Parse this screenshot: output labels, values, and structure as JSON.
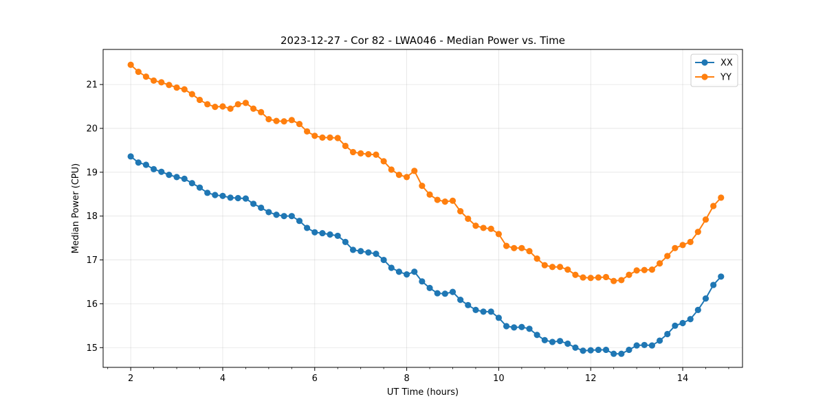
{
  "chart_data": {
    "type": "line",
    "title": "2023-12-27 - Cor 82 - LWA046 - Median Power vs. Time",
    "xlabel": "UT Time (hours)",
    "ylabel": "Median Power (CPU)",
    "xlim": [
      1.4,
      15.3
    ],
    "ylim": [
      14.55,
      21.8
    ],
    "xticks": [
      2,
      4,
      6,
      8,
      10,
      12,
      14
    ],
    "xtick_labels": [
      "2",
      "4",
      "6",
      "8",
      "10",
      "12",
      "14"
    ],
    "yticks": [
      15,
      16,
      17,
      18,
      19,
      20,
      21
    ],
    "ytick_labels": [
      "15",
      "16",
      "17",
      "18",
      "19",
      "20",
      "21"
    ],
    "grid": true,
    "legend_position": "top-right",
    "x": [
      2.0,
      2.167,
      2.333,
      2.5,
      2.667,
      2.833,
      3.0,
      3.167,
      3.333,
      3.5,
      3.667,
      3.833,
      4.0,
      4.167,
      4.333,
      4.5,
      4.667,
      4.833,
      5.0,
      5.167,
      5.333,
      5.5,
      5.667,
      5.833,
      6.0,
      6.167,
      6.333,
      6.5,
      6.667,
      6.833,
      7.0,
      7.167,
      7.333,
      7.5,
      7.667,
      7.833,
      8.0,
      8.167,
      8.333,
      8.5,
      8.667,
      8.833,
      9.0,
      9.167,
      9.333,
      9.5,
      9.667,
      9.833,
      10.0,
      10.167,
      10.333,
      10.5,
      10.667,
      10.833,
      11.0,
      11.167,
      11.333,
      11.5,
      11.667,
      11.833,
      12.0,
      12.167,
      12.333,
      12.5,
      12.667,
      12.833,
      13.0,
      13.167,
      13.333,
      13.5,
      13.667,
      13.833,
      14.0,
      14.167,
      14.333,
      14.5,
      14.667,
      14.833
    ],
    "series": [
      {
        "name": "XX",
        "color": "#1f77b4",
        "values": [
          19.36,
          19.22,
          19.17,
          19.07,
          19.01,
          18.94,
          18.89,
          18.85,
          18.75,
          18.65,
          18.53,
          18.48,
          18.46,
          18.42,
          18.41,
          18.4,
          18.28,
          18.19,
          18.09,
          18.03,
          18.0,
          18.0,
          17.89,
          17.73,
          17.63,
          17.61,
          17.58,
          17.55,
          17.41,
          17.23,
          17.2,
          17.17,
          17.14,
          17.0,
          16.82,
          16.73,
          16.67,
          16.73,
          16.51,
          16.36,
          16.24,
          16.23,
          16.27,
          16.09,
          15.97,
          15.86,
          15.82,
          15.82,
          15.68,
          15.49,
          15.46,
          15.47,
          15.43,
          15.29,
          15.17,
          15.13,
          15.15,
          15.09,
          15.0,
          14.93,
          14.94,
          14.95,
          14.95,
          14.86,
          14.86,
          14.95,
          15.05,
          15.06,
          15.05,
          15.16,
          15.31,
          15.5,
          15.56,
          15.65,
          15.86,
          16.12,
          16.43,
          16.62
        ]
      },
      {
        "name": "YY",
        "color": "#ff7f0e",
        "values": [
          21.45,
          21.29,
          21.18,
          21.09,
          21.05,
          20.99,
          20.93,
          20.89,
          20.78,
          20.65,
          20.55,
          20.49,
          20.5,
          20.45,
          20.55,
          20.58,
          20.45,
          20.37,
          20.21,
          20.17,
          20.16,
          20.19,
          20.1,
          19.93,
          19.83,
          19.79,
          19.79,
          19.78,
          19.6,
          19.46,
          19.43,
          19.41,
          19.4,
          19.25,
          19.06,
          18.94,
          18.89,
          19.03,
          18.69,
          18.49,
          18.37,
          18.33,
          18.35,
          18.11,
          17.94,
          17.78,
          17.73,
          17.71,
          17.59,
          17.32,
          17.27,
          17.27,
          17.2,
          17.03,
          16.88,
          16.84,
          16.84,
          16.78,
          16.66,
          16.6,
          16.59,
          16.6,
          16.61,
          16.52,
          16.54,
          16.66,
          16.76,
          16.77,
          16.78,
          16.92,
          17.09,
          17.27,
          17.34,
          17.41,
          17.64,
          17.92,
          18.23,
          18.42
        ]
      }
    ]
  }
}
